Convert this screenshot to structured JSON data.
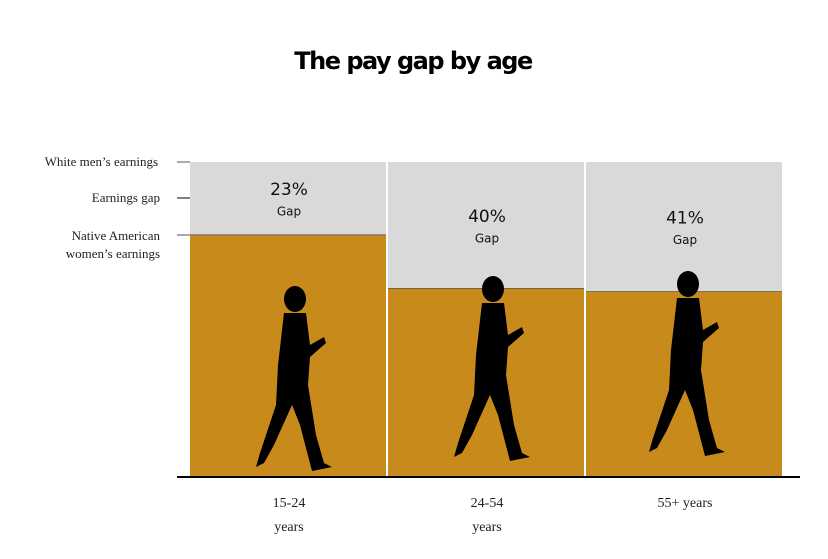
{
  "chart_data": {
    "type": "stacked-bar",
    "title": "The pay gap by age",
    "reference_label": "White men’s earnings",
    "categories": [
      "15-24 years",
      "24-54 years",
      "55+ years"
    ],
    "series": [
      {
        "name": "Native American women’s earnings",
        "color": "#c98a1c",
        "values": [
          77,
          60,
          59
        ]
      },
      {
        "name": "Earnings gap",
        "color": "#d9d9d9",
        "values": [
          23,
          40,
          41
        ],
        "value_labels": [
          "23%",
          "40%",
          "41%"
        ],
        "sublabel": "Gap"
      }
    ],
    "ylim": [
      0,
      100
    ]
  }
}
